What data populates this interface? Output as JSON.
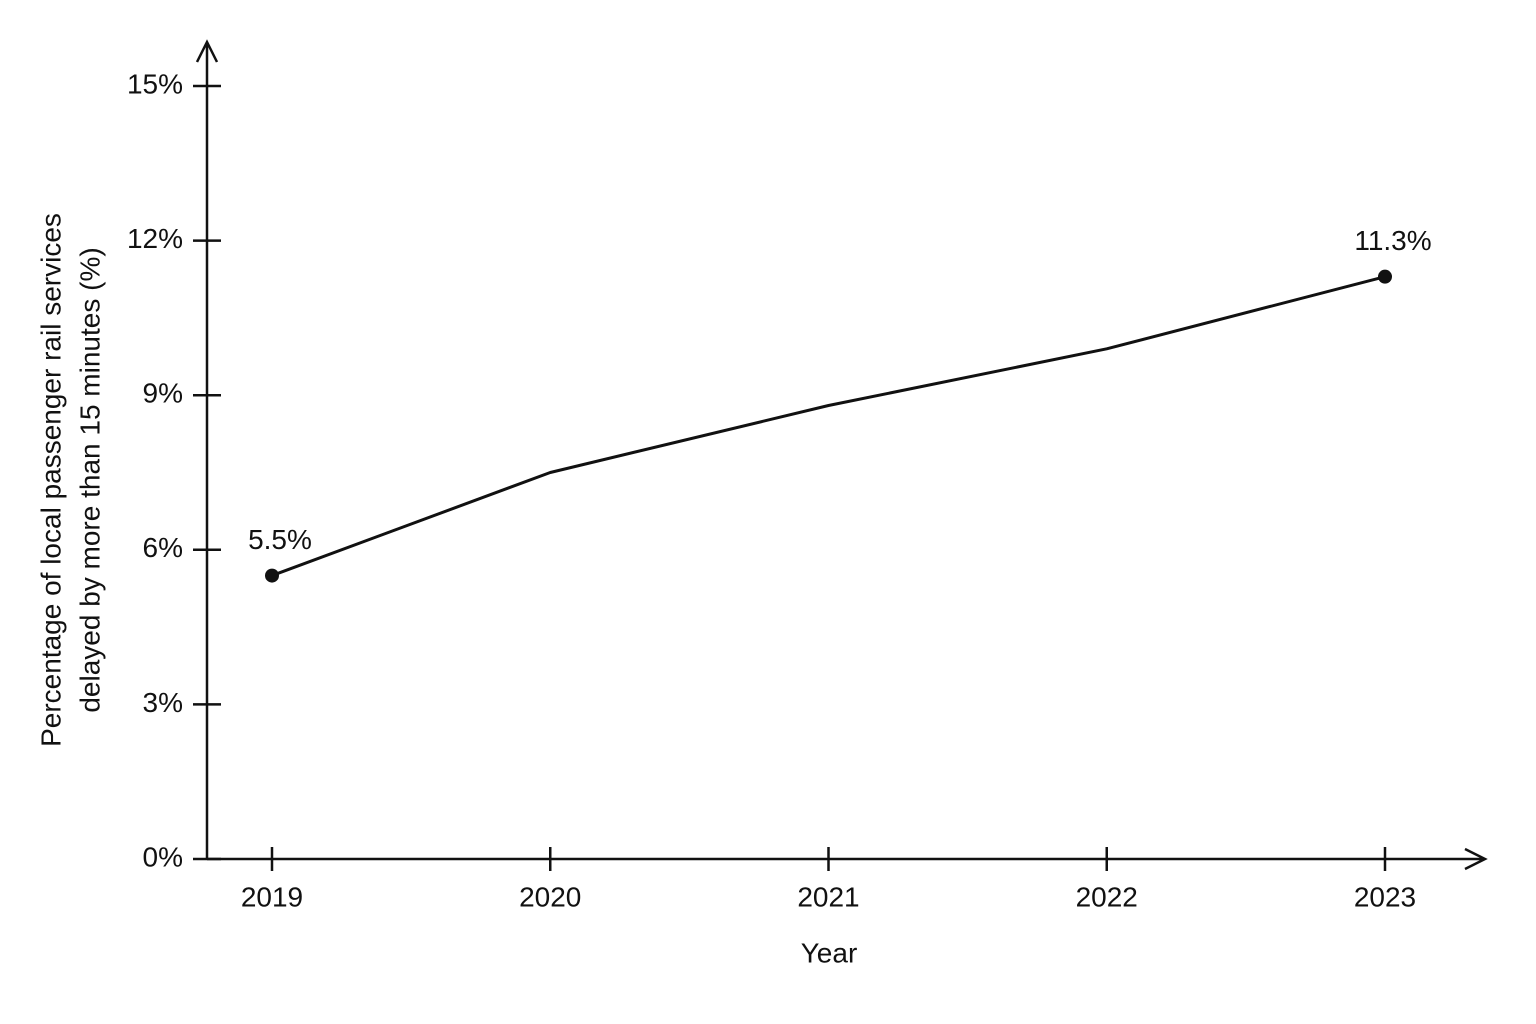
{
  "chart_data": {
    "type": "line",
    "xlabel": "Year",
    "ylabel": [
      "Percentage of local passenger rail services",
      "delayed by more than 15 minutes (%)"
    ],
    "categories": [
      "2019",
      "2020",
      "2021",
      "2022",
      "2023"
    ],
    "values": [
      5.5,
      7.5,
      8.8,
      9.9,
      11.3
    ],
    "value_labels": [
      "5.5%",
      null,
      null,
      null,
      "11.3%"
    ],
    "color": "#111111",
    "ylim": [
      0,
      15
    ],
    "yticks": [
      {
        "value": 0,
        "label": "0%"
      },
      {
        "value": 3,
        "label": "3%"
      },
      {
        "value": 6,
        "label": "6%"
      },
      {
        "value": 9,
        "label": "9%"
      },
      {
        "value": 12,
        "label": "12%"
      },
      {
        "value": 15,
        "label": "15%"
      }
    ],
    "grid": false
  }
}
